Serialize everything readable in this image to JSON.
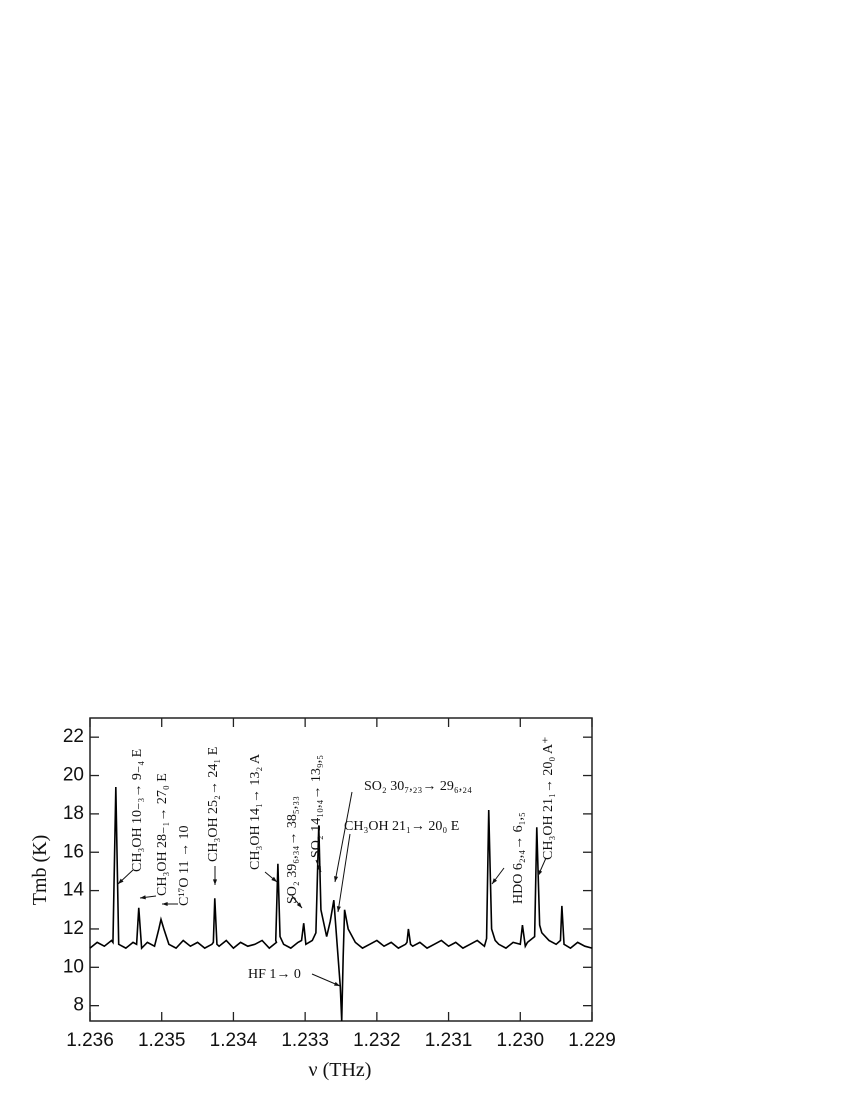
{
  "chart_data": {
    "type": "line",
    "xlabel": "ν (THz)",
    "ylabel": "Tmb (K)",
    "xlim": [
      1.236,
      1.229
    ],
    "ylim": [
      7.2,
      23
    ],
    "xticks": [
      1.236,
      1.235,
      1.234,
      1.233,
      1.232,
      1.231,
      {
        "value": 1.23,
        "label": "1.230"
      },
      1.229
    ],
    "yticks": [
      8,
      10,
      12,
      14,
      16,
      18,
      20,
      22
    ],
    "color": "#000000",
    "x": [
      1.236,
      1.2359,
      1.2358,
      1.2357,
      1.23568,
      1.23564,
      1.2356,
      1.2355,
      1.2354,
      1.23535,
      1.23532,
      1.23528,
      1.2352,
      1.2351,
      1.23504,
      1.23501,
      1.23497,
      1.2349,
      1.2348,
      1.2347,
      1.2346,
      1.2345,
      1.2344,
      1.2343,
      1.23428,
      1.23426,
      1.23423,
      1.2342,
      1.2341,
      1.234,
      1.2339,
      1.2338,
      1.2337,
      1.2336,
      1.2335,
      1.2334,
      1.23341,
      1.23338,
      1.23335,
      1.2333,
      1.2332,
      1.2331,
      1.23305,
      1.23302,
      1.23299,
      1.2329,
      1.23285,
      1.23281,
      1.23278,
      1.2327,
      1.23265,
      1.2326,
      1.23255,
      1.23251,
      1.23249,
      1.23247,
      1.23245,
      1.2324,
      1.2323,
      1.2322,
      1.2321,
      1.232,
      1.2319,
      1.2318,
      1.2317,
      1.2316,
      1.23158,
      1.23156,
      1.23153,
      1.2315,
      1.2314,
      1.2313,
      1.2312,
      1.2311,
      1.231,
      1.2309,
      1.2308,
      1.2307,
      1.2306,
      1.2305,
      1.23047,
      1.23044,
      1.2304,
      1.23035,
      1.2303,
      1.2302,
      1.2301,
      1.23,
      1.22997,
      1.22993,
      1.2299,
      1.2298,
      1.22977,
      1.22973,
      1.2297,
      1.2296,
      1.2295,
      1.22944,
      1.22942,
      1.22939,
      1.2293,
      1.2292,
      1.2291,
      1.229
    ],
    "values": [
      11.0,
      11.3,
      11.1,
      11.4,
      11.3,
      19.4,
      11.2,
      11.0,
      11.3,
      11.2,
      13.1,
      11.0,
      11.3,
      11.1,
      12.0,
      12.5,
      12.0,
      11.2,
      11.0,
      11.4,
      11.1,
      11.3,
      11.0,
      11.2,
      11.3,
      13.6,
      11.2,
      11.1,
      11.4,
      11.0,
      11.3,
      11.1,
      11.2,
      11.4,
      11.0,
      11.3,
      11.4,
      15.4,
      11.6,
      11.2,
      11.0,
      11.3,
      11.4,
      12.3,
      11.2,
      11.4,
      11.8,
      17.4,
      13.0,
      11.6,
      12.4,
      13.5,
      11.0,
      9.0,
      7.2,
      10.5,
      13.0,
      12.0,
      11.3,
      11.0,
      11.2,
      11.4,
      11.1,
      11.3,
      11.0,
      11.2,
      11.3,
      12.0,
      11.2,
      11.1,
      11.3,
      11.0,
      11.2,
      11.4,
      11.1,
      11.3,
      11.0,
      11.2,
      11.4,
      11.1,
      11.5,
      18.2,
      12.0,
      11.4,
      11.2,
      11.0,
      11.3,
      11.2,
      12.2,
      11.1,
      11.3,
      11.6,
      17.3,
      12.2,
      11.8,
      11.4,
      11.2,
      11.4,
      13.2,
      11.2,
      11.0,
      11.3,
      11.1,
      11.0
    ],
    "annotations": [
      "CH₃OH  10₋₃→ 9₋₄ E",
      "CH₃OH  28₋₁→ 27₀ E",
      "C¹⁷O  11 → 10",
      "CH₃OH  25₂→ 24₁ E",
      "CH₃OH  14₁→ 13₂ A",
      "SO₂  39₆,₃₄→ 38₅,₃₃",
      "SO₂  14₁₀,₄→ 13₉,₅",
      "SO₂  30₇,₂₃→ 29₆,₂₄",
      "CH₃OH  21₁→ 20₀ E",
      "HDO  6₂,₄→ 6₁,₅",
      "CH₃OH  21₁→ 20₀ A⁺",
      "HF  1→ 0"
    ]
  }
}
